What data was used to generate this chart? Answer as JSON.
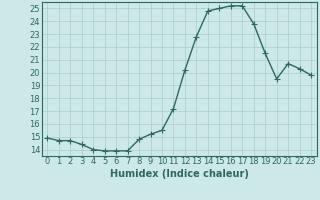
{
  "x": [
    0,
    1,
    2,
    3,
    4,
    5,
    6,
    7,
    8,
    9,
    10,
    11,
    12,
    13,
    14,
    15,
    16,
    17,
    18,
    19,
    20,
    21,
    22,
    23
  ],
  "y": [
    14.9,
    14.7,
    14.7,
    14.4,
    14.0,
    13.9,
    13.9,
    13.9,
    14.8,
    15.2,
    15.5,
    17.2,
    20.2,
    22.8,
    24.8,
    25.0,
    25.2,
    25.2,
    23.8,
    21.5,
    19.5,
    20.7,
    20.3,
    19.8
  ],
  "line_color": "#2d6a5a",
  "marker": "+",
  "marker_size": 4,
  "bg_color": "#cce8e8",
  "grid_color": "#aacccc",
  "xlabel": "Humidex (Indice chaleur)",
  "ylim": [
    13.5,
    25.5
  ],
  "xlim": [
    -0.5,
    23.5
  ],
  "yticks": [
    14,
    15,
    16,
    17,
    18,
    19,
    20,
    21,
    22,
    23,
    24,
    25
  ],
  "xticks": [
    0,
    1,
    2,
    3,
    4,
    5,
    6,
    7,
    8,
    9,
    10,
    11,
    12,
    13,
    14,
    15,
    16,
    17,
    18,
    19,
    20,
    21,
    22,
    23
  ],
  "tick_label_color": "#2d6a5a",
  "xlabel_color": "#2d6a5a",
  "label_fontsize": 7,
  "tick_fontsize": 6,
  "spine_color": "#2d6a5a",
  "linewidth": 1.0,
  "markeredgewidth": 0.8
}
